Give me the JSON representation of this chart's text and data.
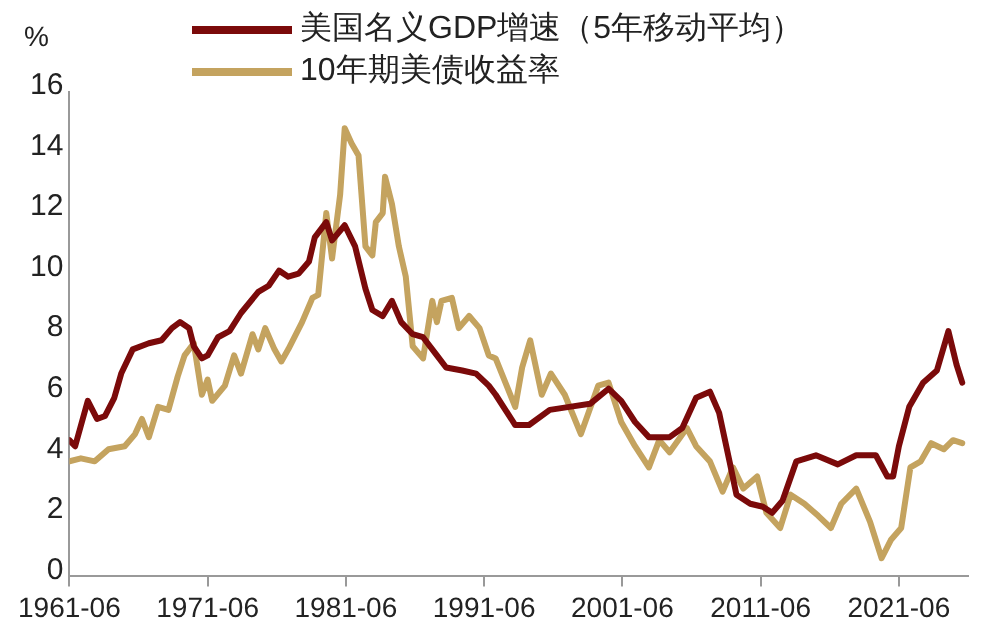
{
  "chart_data": {
    "type": "line",
    "ylabel": "%",
    "legend": "top",
    "grid": false,
    "marker": "none",
    "line_style": "solid",
    "xlim": [
      "1961-06",
      "2026-06"
    ],
    "xticks": [
      "1961-06",
      "1971-06",
      "1981-06",
      "1991-06",
      "2001-06",
      "2011-06",
      "2021-06"
    ],
    "ylim": [
      0,
      16
    ],
    "yticks": [
      0,
      2,
      4,
      6,
      8,
      10,
      12,
      14,
      16
    ],
    "series": [
      {
        "name": "美国名义GDP增速（5年移动平均）",
        "color": "#7b0a0a",
        "x": [
          "1961-06",
          "1961-11",
          "1962-10",
          "1963-06",
          "1964-01",
          "1964-09",
          "1965-03",
          "1966-01",
          "1967-03",
          "1968-02",
          "1968-11",
          "1969-06",
          "1970-02",
          "1970-06",
          "1971-01",
          "1971-06",
          "1972-03",
          "1973-01",
          "1973-11",
          "1975-02",
          "1975-11",
          "1976-08",
          "1977-04",
          "1978-01",
          "1978-10",
          "1979-03",
          "1980-01",
          "1980-06",
          "1981-05",
          "1982-02",
          "1982-11",
          "1983-05",
          "1984-02",
          "1984-10",
          "1985-06",
          "1986-04",
          "1987-01",
          "1988-01",
          "1988-09",
          "1989-11",
          "1990-11",
          "1991-10",
          "1992-04",
          "1993-09",
          "1994-09",
          "1996-03",
          "1997-08",
          "1999-02",
          "2000-06",
          "2001-05",
          "2002-05",
          "2003-05",
          "2004-11",
          "2005-10",
          "2006-10",
          "2007-10",
          "2008-06",
          "2009-03",
          "2009-09",
          "2010-09",
          "2011-08",
          "2012-04",
          "2013-01",
          "2014-01",
          "2015-06",
          "2017-01",
          "2018-05",
          "2019-10",
          "2020-08",
          "2021-01",
          "2021-06",
          "2022-03",
          "2023-03",
          "2024-03",
          "2025-01",
          "2025-08",
          "2026-01"
        ],
        "values": [
          4.5,
          4.3,
          5.8,
          5.2,
          5.3,
          5.9,
          6.7,
          7.5,
          7.7,
          7.8,
          8.2,
          8.4,
          8.2,
          7.6,
          7.2,
          7.3,
          7.9,
          8.1,
          8.7,
          9.4,
          9.6,
          10.1,
          9.9,
          10.0,
          10.4,
          11.2,
          11.7,
          11.1,
          11.6,
          10.9,
          9.5,
          8.8,
          8.6,
          9.1,
          8.4,
          8.0,
          7.9,
          7.3,
          6.9,
          6.8,
          6.7,
          6.3,
          6.0,
          5.0,
          5.0,
          5.5,
          5.6,
          5.7,
          6.2,
          5.8,
          5.1,
          4.6,
          4.6,
          4.9,
          5.9,
          6.1,
          5.4,
          3.8,
          2.7,
          2.4,
          2.3,
          2.1,
          2.5,
          3.8,
          4.0,
          3.7,
          4.0,
          4.0,
          3.3,
          3.3,
          4.3,
          5.6,
          6.4,
          6.8,
          8.1,
          7.0,
          6.4
        ]
      },
      {
        "name": "10年期美债收益率",
        "color": "#c4a35f",
        "x": [
          "1961-06",
          "1962-04",
          "1963-04",
          "1964-04",
          "1965-06",
          "1966-03",
          "1966-09",
          "1967-03",
          "1967-11",
          "1968-08",
          "1969-04",
          "1969-10",
          "1970-06",
          "1971-01",
          "1971-06",
          "1971-10",
          "1972-09",
          "1973-05",
          "1973-11",
          "1974-09",
          "1975-02",
          "1975-08",
          "1976-04",
          "1976-10",
          "1977-04",
          "1978-04",
          "1979-01",
          "1979-06",
          "1980-01",
          "1980-06",
          "1981-01",
          "1981-05",
          "1981-11",
          "1982-05",
          "1982-11",
          "1983-05",
          "1983-08",
          "1984-02",
          "1984-04",
          "1984-10",
          "1985-04",
          "1985-10",
          "1986-04",
          "1987-01",
          "1987-09",
          "1988-01",
          "1988-05",
          "1989-02",
          "1989-08",
          "1990-05",
          "1991-02",
          "1991-10",
          "1992-04",
          "1993-09",
          "1994-03",
          "1994-10",
          "1995-08",
          "1996-04",
          "1997-04",
          "1998-06",
          "1999-09",
          "2000-06",
          "2001-05",
          "2002-05",
          "2003-05",
          "2004-02",
          "2004-11",
          "2006-02",
          "2006-10",
          "2007-10",
          "2008-09",
          "2009-06",
          "2010-03",
          "2011-03",
          "2011-11",
          "2012-11",
          "2013-08",
          "2014-08",
          "2015-08",
          "2016-07",
          "2017-04",
          "2018-05",
          "2019-05",
          "2020-03",
          "2020-11",
          "2021-08",
          "2022-04",
          "2023-01",
          "2023-10",
          "2024-09",
          "2025-05",
          "2026-01"
        ],
        "values": [
          3.8,
          3.9,
          3.8,
          4.2,
          4.3,
          4.7,
          5.2,
          4.6,
          5.6,
          5.5,
          6.6,
          7.3,
          7.7,
          6.0,
          6.5,
          5.8,
          6.3,
          7.3,
          6.7,
          8.0,
          7.5,
          8.2,
          7.5,
          7.1,
          7.5,
          8.4,
          9.2,
          9.3,
          12.0,
          10.5,
          12.6,
          14.8,
          14.3,
          13.9,
          10.9,
          10.6,
          11.7,
          12.0,
          13.2,
          12.3,
          10.9,
          9.9,
          7.6,
          7.2,
          9.1,
          8.4,
          9.1,
          9.2,
          8.2,
          8.6,
          8.2,
          7.3,
          7.2,
          5.6,
          6.9,
          7.8,
          6.0,
          6.7,
          6.0,
          4.7,
          6.3,
          6.4,
          5.1,
          4.3,
          3.6,
          4.5,
          4.1,
          4.9,
          4.3,
          3.8,
          2.8,
          3.6,
          2.9,
          3.3,
          2.1,
          1.6,
          2.7,
          2.4,
          2.0,
          1.6,
          2.4,
          2.9,
          1.8,
          0.6,
          1.2,
          1.6,
          3.6,
          3.8,
          4.4,
          4.2,
          4.5,
          4.4
        ]
      }
    ]
  }
}
